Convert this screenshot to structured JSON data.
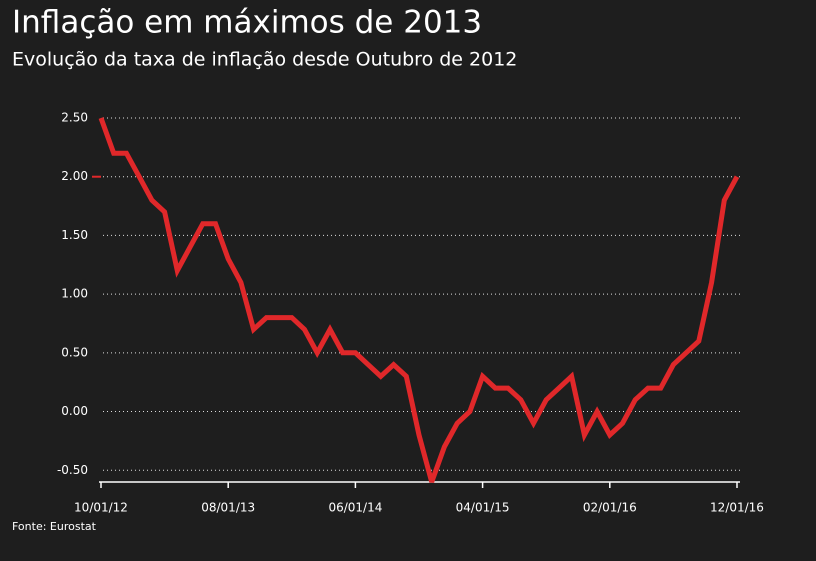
{
  "chart_data": {
    "type": "line",
    "title": "Inflação em máximos de 2013",
    "subtitle": "Evolução da taxa de inflação desde Outubro de 2012",
    "source": "Fonte: Eurostat",
    "categories": [
      "10/01/12",
      null,
      null,
      null,
      null,
      null,
      null,
      null,
      null,
      null,
      "08/01/13",
      null,
      null,
      null,
      null,
      null,
      null,
      null,
      null,
      null,
      "06/01/14",
      null,
      null,
      null,
      null,
      null,
      null,
      null,
      null,
      null,
      "04/01/15",
      null,
      null,
      null,
      null,
      null,
      null,
      null,
      null,
      null,
      "02/01/16",
      null,
      null,
      null,
      null,
      null,
      null,
      null,
      null,
      null,
      "12/01/16"
    ],
    "series": [
      {
        "name": "Inflação",
        "color": "#e0282a",
        "values": [
          2.5,
          2.2,
          2.2,
          2.0,
          1.8,
          1.7,
          1.2,
          1.4,
          1.6,
          1.6,
          1.3,
          1.1,
          0.7,
          0.8,
          0.8,
          0.8,
          0.7,
          0.5,
          0.7,
          0.5,
          0.5,
          0.4,
          0.3,
          0.4,
          0.3,
          -0.2,
          -0.6,
          -0.3,
          -0.1,
          0.0,
          0.3,
          0.2,
          0.2,
          0.1,
          -0.1,
          0.1,
          0.2,
          0.3,
          -0.2,
          0.0,
          -0.2,
          -0.1,
          0.1,
          0.2,
          0.2,
          0.4,
          0.5,
          0.6,
          1.1,
          1.8,
          2.0
        ]
      }
    ],
    "ylim": [
      -0.6,
      2.5
    ],
    "yticks": [
      {
        "value": -0.5,
        "label": "-0.50"
      },
      {
        "value": 0,
        "label": "0.00"
      },
      {
        "value": 0.5,
        "label": "0.50"
      },
      {
        "value": 1,
        "label": "1.00"
      },
      {
        "value": 1.5,
        "label": "1.50"
      },
      {
        "value": 2,
        "label": "2.00"
      },
      {
        "value": 2.5,
        "label": "2.50"
      }
    ],
    "grid": true
  }
}
